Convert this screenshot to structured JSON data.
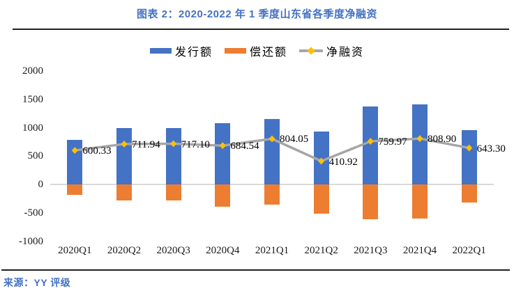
{
  "header": {
    "title": "图表 2：2020-2022 年 1 季度山东省各季度净融资"
  },
  "footer": {
    "source": "来源：YY 评级"
  },
  "legend": {
    "items": [
      {
        "label": "发行额",
        "swatch": "bar",
        "color": "#4472C4"
      },
      {
        "label": "偿还额",
        "swatch": "bar",
        "color": "#ED7D31"
      },
      {
        "label": "净融资",
        "swatch": "line-diamond",
        "color": "#A6A6A6",
        "marker_color": "#FFC000"
      }
    ]
  },
  "colors": {
    "accent_blue": "#4472C4",
    "bar_issuance": "#4472C4",
    "bar_repayment": "#ED7D31",
    "net_line": "#A6A6A6",
    "net_marker": "#FFC000",
    "zero_gridline": "#D9D9D9",
    "rule": "#1f1f1f"
  },
  "chart_data": {
    "type": "bar",
    "subtype": "bar-with-line-overlay",
    "title": "图表 2：2020-2022 年 1 季度山东省各季度净融资",
    "categories": [
      "2020Q1",
      "2020Q2",
      "2020Q3",
      "2020Q4",
      "2021Q1",
      "2021Q2",
      "2021Q3",
      "2021Q4",
      "2022Q1"
    ],
    "series": [
      {
        "name": "发行额",
        "type": "bar",
        "color": "#4472C4",
        "values": [
          790,
          995,
          1000,
          1080,
          1155,
          930,
          1375,
          1410,
          960
        ]
      },
      {
        "name": "偿还额",
        "type": "bar",
        "color": "#ED7D31",
        "values": [
          -190,
          -283,
          -283,
          -395,
          -351,
          -519,
          -615,
          -601,
          -317
        ]
      },
      {
        "name": "净融资",
        "type": "line",
        "color": "#A6A6A6",
        "marker": "diamond",
        "marker_color": "#FFC000",
        "values": [
          600.33,
          711.94,
          717.1,
          684.54,
          804.05,
          410.92,
          759.97,
          808.9,
          643.3
        ],
        "data_labels": [
          "600.33",
          "711.94",
          "717.10",
          "684.54",
          "804.05",
          "410.92",
          "759.97",
          "808.90",
          "643.30"
        ]
      }
    ],
    "y_ticks": [
      2000,
      1500,
      1000,
      500,
      0,
      -500,
      -1000
    ],
    "ylim": [
      -1000,
      2000
    ],
    "xlabel": "",
    "ylabel": "",
    "grid": "zero-line-only",
    "legend_position": "top"
  }
}
